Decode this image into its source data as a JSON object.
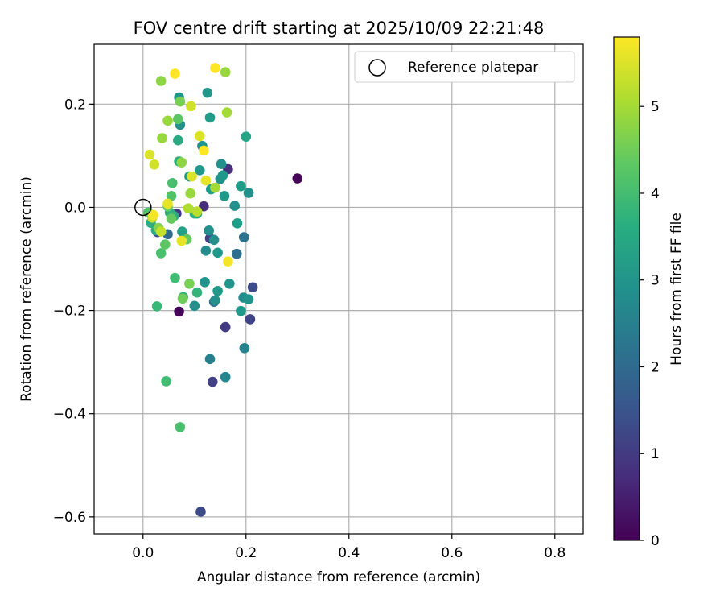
{
  "chart_data": {
    "type": "scatter",
    "title": "FOV centre drift starting at 2025/10/09 22:21:48",
    "xlabel": "Angular distance from reference (arcmin)",
    "ylabel": "Rotation from reference (arcmin)",
    "xlim": [
      -0.095,
      0.855
    ],
    "ylim": [
      -0.633,
      0.316
    ],
    "xticks": [
      0.0,
      0.2,
      0.4,
      0.6,
      0.8
    ],
    "xtick_labels": [
      "0.0",
      "0.2",
      "0.4",
      "0.6",
      "0.8"
    ],
    "yticks": [
      -0.6,
      -0.4,
      -0.2,
      0.0,
      0.2
    ],
    "ytick_labels": [
      "−0.6",
      "−0.4",
      "−0.2",
      "0.0",
      "0.2"
    ],
    "grid": true,
    "legend": {
      "label": "Reference platepar",
      "position": "top-right"
    },
    "reference_point": {
      "x": 0.0,
      "y": 0.0
    },
    "colorbar": {
      "label": "Hours from first FF file",
      "range": [
        0,
        5.8
      ],
      "ticks": [
        0,
        1,
        2,
        3,
        4,
        5
      ],
      "tick_labels": [
        "0",
        "1",
        "2",
        "3",
        "4",
        "5"
      ],
      "colormap": "viridis"
    },
    "points": [
      {
        "x": 0.3,
        "y": 0.056,
        "h": 0.05
      },
      {
        "x": 0.07,
        "y": -0.202,
        "h": 0.05
      },
      {
        "x": 0.112,
        "y": -0.59,
        "h": 1.3
      },
      {
        "x": 0.135,
        "y": -0.338,
        "h": 1.1
      },
      {
        "x": 0.16,
        "y": -0.232,
        "h": 1.0
      },
      {
        "x": 0.213,
        "y": -0.155,
        "h": 1.3
      },
      {
        "x": 0.208,
        "y": -0.217,
        "h": 1.2
      },
      {
        "x": 0.165,
        "y": 0.074,
        "h": 0.8
      },
      {
        "x": 0.118,
        "y": 0.002,
        "h": 0.8
      },
      {
        "x": 0.065,
        "y": -0.012,
        "h": 0.9
      },
      {
        "x": 0.13,
        "y": -0.06,
        "h": 1.1
      },
      {
        "x": 0.028,
        "y": -0.048,
        "h": 1.4
      },
      {
        "x": 0.048,
        "y": -0.052,
        "h": 2.0
      },
      {
        "x": 0.138,
        "y": -0.183,
        "h": 2.1
      },
      {
        "x": 0.182,
        "y": -0.09,
        "h": 2.1
      },
      {
        "x": 0.196,
        "y": -0.058,
        "h": 2.2
      },
      {
        "x": 0.13,
        "y": -0.294,
        "h": 2.5
      },
      {
        "x": 0.197,
        "y": -0.273,
        "h": 2.6
      },
      {
        "x": 0.16,
        "y": -0.329,
        "h": 2.7
      },
      {
        "x": 0.195,
        "y": -0.175,
        "h": 2.8
      },
      {
        "x": 0.205,
        "y": -0.178,
        "h": 3.0
      },
      {
        "x": 0.19,
        "y": -0.201,
        "h": 3.1
      },
      {
        "x": 0.168,
        "y": -0.148,
        "h": 3.0
      },
      {
        "x": 0.145,
        "y": -0.162,
        "h": 3.1
      },
      {
        "x": 0.14,
        "y": -0.18,
        "h": 2.9
      },
      {
        "x": 0.12,
        "y": -0.145,
        "h": 3.0
      },
      {
        "x": 0.1,
        "y": -0.191,
        "h": 2.9
      },
      {
        "x": 0.122,
        "y": -0.084,
        "h": 2.8
      },
      {
        "x": 0.128,
        "y": -0.045,
        "h": 2.9
      },
      {
        "x": 0.138,
        "y": -0.063,
        "h": 2.9
      },
      {
        "x": 0.145,
        "y": -0.088,
        "h": 3.1
      },
      {
        "x": 0.178,
        "y": 0.003,
        "h": 2.9
      },
      {
        "x": 0.183,
        "y": -0.031,
        "h": 3.2
      },
      {
        "x": 0.158,
        "y": 0.022,
        "h": 3.1
      },
      {
        "x": 0.19,
        "y": 0.041,
        "h": 3.2
      },
      {
        "x": 0.205,
        "y": 0.028,
        "h": 2.9
      },
      {
        "x": 0.15,
        "y": 0.055,
        "h": 2.9
      },
      {
        "x": 0.155,
        "y": 0.062,
        "h": 3.1
      },
      {
        "x": 0.152,
        "y": 0.084,
        "h": 2.9
      },
      {
        "x": 0.132,
        "y": 0.035,
        "h": 3.2
      },
      {
        "x": 0.11,
        "y": 0.072,
        "h": 3.1
      },
      {
        "x": 0.09,
        "y": 0.06,
        "h": 3.2
      },
      {
        "x": 0.115,
        "y": 0.119,
        "h": 3.0
      },
      {
        "x": 0.072,
        "y": 0.16,
        "h": 2.9
      },
      {
        "x": 0.07,
        "y": 0.213,
        "h": 3.0
      },
      {
        "x": 0.125,
        "y": 0.222,
        "h": 3.1
      },
      {
        "x": 0.13,
        "y": 0.174,
        "h": 3.2
      },
      {
        "x": 0.2,
        "y": 0.137,
        "h": 3.4
      },
      {
        "x": 0.068,
        "y": 0.13,
        "h": 3.5
      },
      {
        "x": 0.07,
        "y": 0.089,
        "h": 3.6
      },
      {
        "x": 0.076,
        "y": -0.047,
        "h": 3.3
      },
      {
        "x": 0.105,
        "y": -0.012,
        "h": 3.6
      },
      {
        "x": 0.1,
        "y": -0.012,
        "h": 3.7
      },
      {
        "x": 0.06,
        "y": -0.017,
        "h": 3.6
      },
      {
        "x": 0.052,
        "y": -0.01,
        "h": 3.7
      },
      {
        "x": 0.025,
        "y": -0.044,
        "h": 3.6
      },
      {
        "x": 0.015,
        "y": -0.03,
        "h": 3.6
      },
      {
        "x": 0.078,
        "y": -0.174,
        "h": 3.7
      },
      {
        "x": 0.105,
        "y": -0.165,
        "h": 3.8
      },
      {
        "x": 0.062,
        "y": -0.137,
        "h": 4.0
      },
      {
        "x": 0.027,
        "y": -0.192,
        "h": 3.9
      },
      {
        "x": 0.045,
        "y": -0.337,
        "h": 4.0
      },
      {
        "x": 0.072,
        "y": -0.426,
        "h": 4.1
      },
      {
        "x": 0.035,
        "y": -0.089,
        "h": 4.1
      },
      {
        "x": 0.043,
        "y": -0.072,
        "h": 4.3
      },
      {
        "x": 0.085,
        "y": -0.062,
        "h": 4.4
      },
      {
        "x": 0.09,
        "y": -0.148,
        "h": 4.6
      },
      {
        "x": 0.077,
        "y": -0.177,
        "h": 4.5
      },
      {
        "x": 0.055,
        "y": -0.022,
        "h": 4.4
      },
      {
        "x": 0.03,
        "y": -0.04,
        "h": 4.7
      },
      {
        "x": 0.01,
        "y": -0.01,
        "h": 4.2
      },
      {
        "x": 0.048,
        "y": 0.002,
        "h": 4.5
      },
      {
        "x": 0.055,
        "y": 0.022,
        "h": 4.2
      },
      {
        "x": 0.057,
        "y": 0.047,
        "h": 4.1
      },
      {
        "x": 0.068,
        "y": 0.171,
        "h": 4.3
      },
      {
        "x": 0.072,
        "y": 0.205,
        "h": 4.6
      },
      {
        "x": 0.048,
        "y": 0.168,
        "h": 4.9
      },
      {
        "x": 0.035,
        "y": 0.245,
        "h": 4.8
      },
      {
        "x": 0.16,
        "y": 0.262,
        "h": 4.9
      },
      {
        "x": 0.163,
        "y": 0.184,
        "h": 5.0
      },
      {
        "x": 0.037,
        "y": 0.134,
        "h": 4.9
      },
      {
        "x": 0.075,
        "y": 0.087,
        "h": 4.8
      },
      {
        "x": 0.092,
        "y": 0.027,
        "h": 4.9
      },
      {
        "x": 0.14,
        "y": 0.038,
        "h": 5.0
      },
      {
        "x": 0.088,
        "y": -0.002,
        "h": 5.1
      },
      {
        "x": 0.105,
        "y": -0.008,
        "h": 5.2
      },
      {
        "x": 0.035,
        "y": -0.047,
        "h": 5.3
      },
      {
        "x": 0.018,
        "y": -0.02,
        "h": 5.4
      },
      {
        "x": 0.013,
        "y": 0.102,
        "h": 5.5
      },
      {
        "x": 0.022,
        "y": 0.083,
        "h": 5.4
      },
      {
        "x": 0.093,
        "y": 0.196,
        "h": 5.4
      },
      {
        "x": 0.11,
        "y": 0.138,
        "h": 5.5
      },
      {
        "x": 0.095,
        "y": 0.06,
        "h": 5.5
      },
      {
        "x": 0.122,
        "y": 0.052,
        "h": 5.6
      },
      {
        "x": 0.048,
        "y": 0.007,
        "h": 5.6
      },
      {
        "x": 0.075,
        "y": -0.065,
        "h": 5.6
      },
      {
        "x": 0.165,
        "y": -0.105,
        "h": 5.7
      },
      {
        "x": 0.02,
        "y": -0.015,
        "h": 5.7
      },
      {
        "x": 0.118,
        "y": 0.11,
        "h": 5.8
      },
      {
        "x": 0.062,
        "y": 0.259,
        "h": 5.8
      },
      {
        "x": 0.14,
        "y": 0.27,
        "h": 5.8
      }
    ]
  }
}
